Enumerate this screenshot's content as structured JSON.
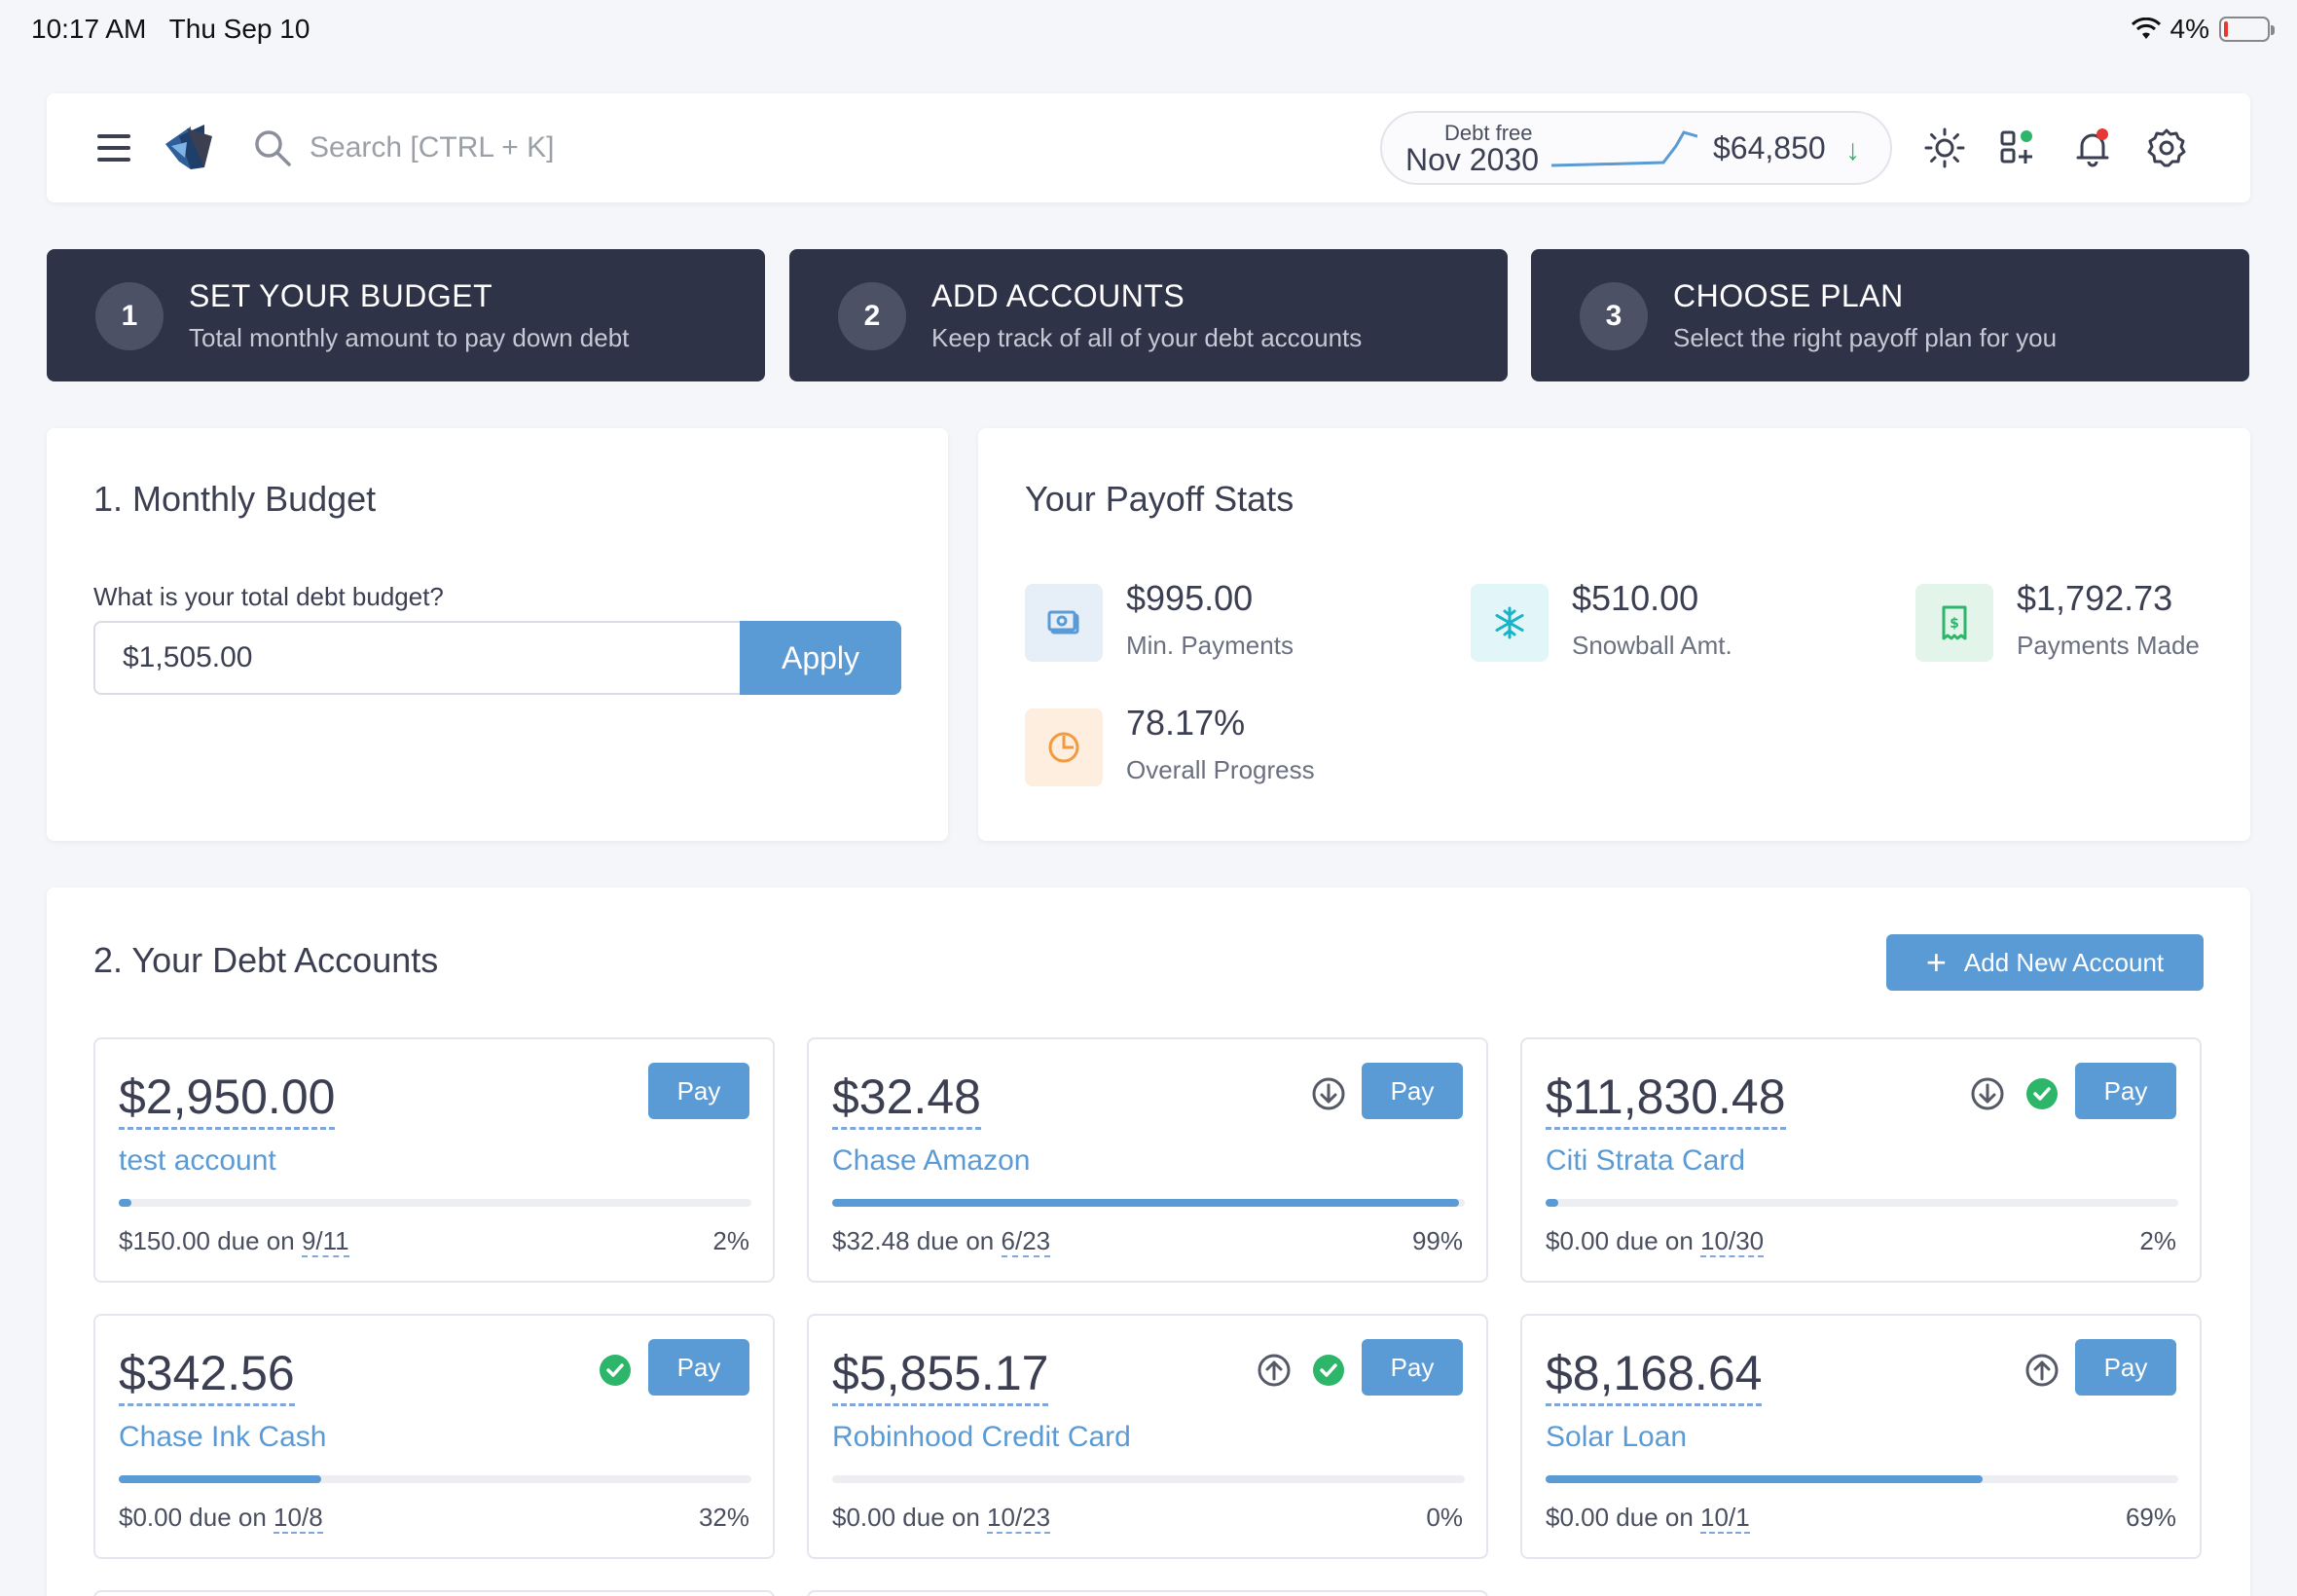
{
  "status_bar": {
    "time": "10:17 AM",
    "date": "Thu Sep 10",
    "battery": "4%",
    "battery_level": 0.04
  },
  "header": {
    "search_placeholder": "Search [CTRL + K]",
    "debt_free_label": "Debt free",
    "debt_free_date": "Nov 2030",
    "total_debt": "$64,850",
    "icons": [
      "menu-icon",
      "logo",
      "search-icon",
      "sun-icon",
      "apps-icon",
      "bell-icon",
      "gear-icon"
    ]
  },
  "steps": [
    {
      "num": "1",
      "title": "SET YOUR BUDGET",
      "sub": "Total monthly amount to pay down debt"
    },
    {
      "num": "2",
      "title": "ADD ACCOUNTS",
      "sub": "Keep track of all of your debt accounts"
    },
    {
      "num": "3",
      "title": "CHOOSE PLAN",
      "sub": "Select the right payoff plan for you"
    }
  ],
  "budget": {
    "title": "1. Monthly Budget",
    "question": "What is your total debt budget?",
    "value": "$1,505.00",
    "apply": "Apply"
  },
  "stats": {
    "title": "Your Payoff Stats",
    "items": [
      {
        "value": "$995.00",
        "label": "Min. Payments",
        "icon": "cash-icon",
        "color": "#5b9bd5",
        "bg": "#e6eef8"
      },
      {
        "value": "$510.00",
        "label": "Snowball Amt.",
        "icon": "snowflake-icon",
        "color": "#17b3c7",
        "bg": "#e2f5f8"
      },
      {
        "value": "$1,792.73",
        "label": "Payments Made",
        "icon": "receipt-icon",
        "color": "#2db66a",
        "bg": "#e3f5ea"
      },
      {
        "value": "78.17%",
        "label": "Overall Progress",
        "icon": "pie-icon",
        "color": "#f29a3f",
        "bg": "#fdeee0"
      }
    ]
  },
  "accounts_section": {
    "title": "2. Your Debt Accounts",
    "add_button": "Add New Account",
    "pay_label": "Pay",
    "accounts": [
      {
        "balance": "$2,950.00",
        "name": "test account",
        "due_prefix": "$150.00 due on",
        "due_date": "9/11",
        "percent": "2%",
        "progress": 0.02,
        "down": false,
        "up": false,
        "check": false
      },
      {
        "balance": "$32.48",
        "name": "Chase Amazon",
        "due_prefix": "$32.48 due on",
        "due_date": "6/23",
        "percent": "99%",
        "progress": 0.99,
        "down": true,
        "up": false,
        "check": false
      },
      {
        "balance": "$11,830.48",
        "name": "Citi Strata Card",
        "due_prefix": "$0.00 due on",
        "due_date": "10/30",
        "percent": "2%",
        "progress": 0.02,
        "down": true,
        "up": false,
        "check": true
      },
      {
        "balance": "$342.56",
        "name": "Chase Ink Cash",
        "due_prefix": "$0.00 due on",
        "due_date": "10/8",
        "percent": "32%",
        "progress": 0.32,
        "down": false,
        "up": false,
        "check": true
      },
      {
        "balance": "$5,855.17",
        "name": "Robinhood Credit Card",
        "due_prefix": "$0.00 due on",
        "due_date": "10/23",
        "percent": "0%",
        "progress": 0.0,
        "down": false,
        "up": true,
        "check": true
      },
      {
        "balance": "$8,168.64",
        "name": "Solar Loan",
        "due_prefix": "$0.00 due on",
        "due_date": "10/1",
        "percent": "69%",
        "progress": 0.69,
        "down": false,
        "up": true,
        "check": false
      }
    ]
  },
  "colors": {
    "accent": "#5b9bd5",
    "dark": "#2f3348",
    "success": "#2db66a",
    "alert": "#e53935"
  }
}
